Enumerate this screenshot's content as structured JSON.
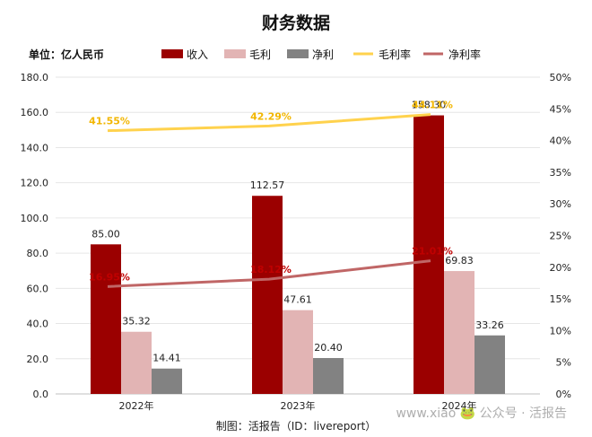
{
  "chart_data": {
    "type": "bar",
    "title": "财务数据",
    "unit_label": "单位：亿人民币",
    "categories": [
      "2022年",
      "2023年",
      "2024年"
    ],
    "series": [
      {
        "name": "收入",
        "type": "bar",
        "axis": "left",
        "color": "#9b0000",
        "values": [
          85.0,
          112.57,
          158.3
        ],
        "labels": [
          "85.00",
          "112.57",
          "158.30"
        ]
      },
      {
        "name": "毛利",
        "type": "bar",
        "axis": "left",
        "color": "#e2b4b4",
        "values": [
          35.32,
          47.61,
          69.83
        ],
        "labels": [
          "35.32",
          "47.61",
          "69.83"
        ]
      },
      {
        "name": "净利",
        "type": "bar",
        "axis": "left",
        "color": "#828282",
        "values": [
          14.41,
          20.4,
          33.26
        ],
        "labels": [
          "14.41",
          "20.40",
          "33.26"
        ]
      },
      {
        "name": "毛利率",
        "type": "line",
        "axis": "right",
        "color": "#ffd24d",
        "label_color": "#f2b600",
        "values": [
          41.55,
          42.29,
          44.11
        ],
        "labels": [
          "41.55%",
          "42.29%",
          "44.11%"
        ]
      },
      {
        "name": "净利率",
        "type": "line",
        "axis": "right",
        "color": "#c06666",
        "label_color": "#c00000",
        "values": [
          16.95,
          18.12,
          21.01
        ],
        "labels": [
          "16.95%",
          "18.12%",
          "21.01%"
        ]
      }
    ],
    "y_left": {
      "range": [
        0,
        180
      ],
      "ticks": [
        "0.0",
        "20.0",
        "40.0",
        "60.0",
        "80.0",
        "100.0",
        "120.0",
        "140.0",
        "160.0",
        "180.0"
      ]
    },
    "y_right": {
      "range": [
        0,
        50
      ],
      "ticks": [
        "0%",
        "5%",
        "10%",
        "15%",
        "20%",
        "25%",
        "30%",
        "35%",
        "40%",
        "45%",
        "50%"
      ]
    },
    "grid": true,
    "legend": "top"
  },
  "footer": "制图：活报告（ID：livereport）",
  "watermark": "www.xiao   🐸 公众号 · 活报告"
}
